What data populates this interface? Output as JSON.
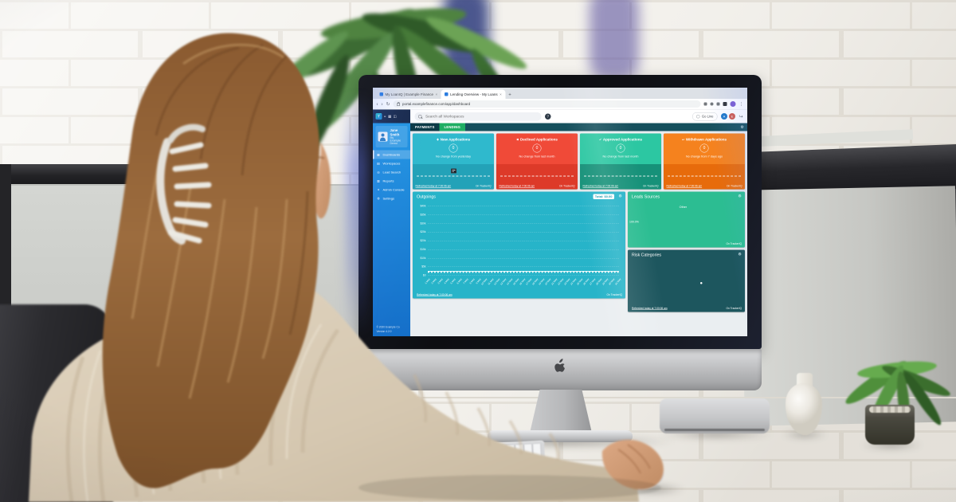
{
  "screen_ui": {
    "glyphs": {
      "gear": "⚙",
      "back": "‹",
      "forward": "›",
      "refresh": "↻",
      "menu": "⋮",
      "new_tab": "+",
      "close": "×",
      "exit": "↪"
    },
    "browser": {
      "tab1": "My LoanIQ | Example Finance",
      "tab2": "Lending Overview - My Loans",
      "url": "portal.examplefinance.com/app/dashboard"
    },
    "header": {
      "logo": "T",
      "search_placeholder": "Search all Workspaces",
      "help": "?",
      "go_live": "Go Live",
      "avatar1": "A",
      "avatar2": "E"
    },
    "sidebar": {
      "user_name": "Jane Smith",
      "user_org": "My Example Demo",
      "items": [
        {
          "icon": "▦",
          "label": "Dashboards",
          "active": true
        },
        {
          "icon": "▤",
          "label": "Workspaces",
          "active": false
        },
        {
          "icon": "◎",
          "label": "Lead Search",
          "active": false
        },
        {
          "icon": "▥",
          "label": "Reports",
          "active": false
        },
        {
          "icon": "✦",
          "label": "Admin Console",
          "active": false
        },
        {
          "icon": "⚙",
          "label": "Settings",
          "active": false
        }
      ],
      "footer1": "© 2020 Example Co",
      "footer2": "Version 4.2.0"
    },
    "tabbar": {
      "tab1": "PAYMENTS",
      "tab2": "LENDING"
    },
    "cards": [
      {
        "icon": "✚",
        "title": "New Applications",
        "value": "0",
        "subtitle": "No change from yesterday",
        "refresh": "Refreshed today at 7:00:06 am",
        "brand": "On TrackerIQ",
        "color_top": "#2fb9cd",
        "color_bottom": "#23a2b8"
      },
      {
        "icon": "✖",
        "title": "Declined Applications",
        "value": "0",
        "subtitle": "No change from last month",
        "refresh": "Refreshed today at 7:00:06 am",
        "brand": "On TrackerIQ",
        "color_top": "#f04a38",
        "color_bottom": "#dd3a29"
      },
      {
        "icon": "✔",
        "title": "Approved Applications",
        "value": "0",
        "subtitle": "No change from last month",
        "refresh": "Refreshed today at 7:00:06 am",
        "brand": "On TrackerIQ",
        "color_top": "#2cc7a2",
        "color_bottom": "#169179"
      },
      {
        "icon": "↩",
        "title": "Withdrawn Applications",
        "value": "0",
        "subtitle": "No change from 7 days ago",
        "refresh": "Refreshed today at 7:00:06 am",
        "brand": "On TrackerIQ",
        "color_top": "#f5821e",
        "color_bottom": "#e76b0b"
      }
    ]
  },
  "chart_data": [
    {
      "type": "line",
      "title": "Outgoings",
      "total_label": "Total: $0.00",
      "x": [
        "1 May",
        "2 May",
        "3 May",
        "4 May",
        "5 May",
        "6 May",
        "7 May",
        "8 May",
        "9 May",
        "10 May",
        "11 May",
        "12 May",
        "13 May",
        "14 May",
        "15 May",
        "16 May",
        "17 May",
        "18 May",
        "19 May",
        "20 May",
        "21 May",
        "22 May",
        "23 May",
        "24 May",
        "25 May",
        "26 May",
        "27 May",
        "28 May",
        "29 May",
        "30 May",
        "31 May"
      ],
      "series": [
        {
          "name": "Outgoings",
          "values": [
            0,
            0,
            0,
            0,
            0,
            0,
            0,
            0,
            0,
            0,
            0,
            0,
            0,
            0,
            0,
            0,
            0,
            0,
            0,
            0,
            0,
            0,
            0,
            0,
            0,
            0,
            0,
            0,
            0,
            0,
            0
          ]
        }
      ],
      "y_ticks": [
        "$40k",
        "$35k",
        "$30k",
        "$25k",
        "$20k",
        "$15k",
        "$10k",
        "$5k",
        "$0"
      ],
      "ylim": [
        0,
        40000
      ],
      "grid": true,
      "legend": "none",
      "footer_refresh": "Refreshed today at 7:00:06 am",
      "footer_brand": "On TrackerIQ"
    },
    {
      "type": "pie",
      "title": "Leads Sources",
      "labels": [
        "Other"
      ],
      "values": [
        100
      ],
      "value_labels": [
        "100.0%"
      ],
      "footer_brand": "On TrackerIQ"
    },
    {
      "type": "scatter",
      "title": "Risk Categories",
      "points": [
        {
          "x": 0.62,
          "y": 0.52
        }
      ],
      "footer_refresh": "Refreshed today at 7:00:06 am",
      "footer_brand": "On TrackerIQ"
    }
  ]
}
